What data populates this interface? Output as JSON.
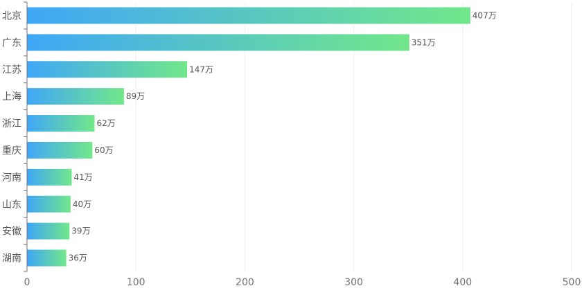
{
  "chart_data": {
    "type": "bar",
    "orientation": "horizontal",
    "categories": [
      "北京",
      "广东",
      "江苏",
      "上海",
      "浙江",
      "重庆",
      "河南",
      "山东",
      "安徽",
      "湖南"
    ],
    "values": [
      407,
      351,
      147,
      89,
      62,
      60,
      41,
      40,
      39,
      36
    ],
    "value_labels": [
      "407万",
      "351万",
      "147万",
      "89万",
      "62万",
      "60万",
      "41万",
      "40万",
      "39万",
      "36万"
    ],
    "xlim": [
      0,
      500
    ],
    "x_ticks": [
      "0",
      "100",
      "200",
      "300",
      "400",
      "500"
    ],
    "grid": true,
    "colors": {
      "bar_start": "#3fa7f7",
      "bar_end": "#72e78a",
      "grid": "#eeeeee",
      "axis": "#6e7079",
      "label": "#555555"
    }
  }
}
